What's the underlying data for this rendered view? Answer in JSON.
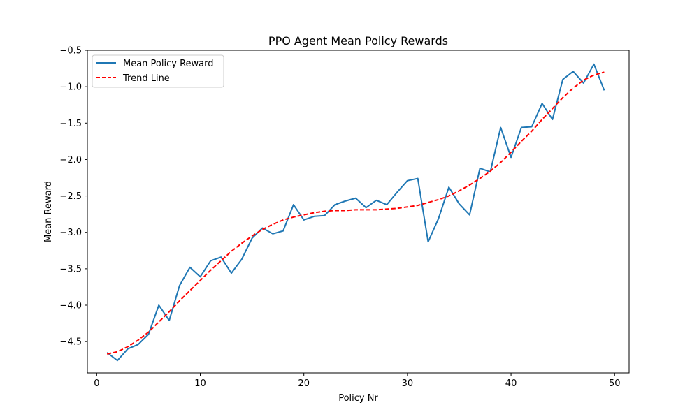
{
  "chart_data": {
    "type": "line",
    "title": "PPO Agent Mean Policy Rewards",
    "xlabel": "Policy Nr",
    "ylabel": "Mean Reward",
    "xlim": [
      -0.9,
      51.4
    ],
    "ylim": [
      -4.93,
      -0.5
    ],
    "xticks": [
      0,
      10,
      20,
      30,
      40,
      50
    ],
    "xtick_labels": [
      "0",
      "10",
      "20",
      "30",
      "40",
      "50"
    ],
    "yticks": [
      -4.5,
      -4.0,
      -3.5,
      -3.0,
      -2.5,
      -2.0,
      -1.5,
      -1.0,
      -0.5
    ],
    "ytick_labels": [
      "−4.5",
      "−4.0",
      "−3.5",
      "−3.0",
      "−2.5",
      "−2.0",
      "−1.5",
      "−1.0",
      "−0.5"
    ],
    "grid": false,
    "legend_position": "top-left",
    "x": [
      1,
      2,
      3,
      4,
      5,
      6,
      7,
      8,
      9,
      10,
      11,
      12,
      13,
      14,
      15,
      16,
      17,
      18,
      19,
      20,
      21,
      22,
      23,
      24,
      25,
      26,
      27,
      28,
      29,
      30,
      31,
      32,
      33,
      34,
      35,
      36,
      37,
      38,
      39,
      40,
      41,
      42,
      43,
      44,
      45,
      46,
      47,
      48,
      49
    ],
    "series": [
      {
        "name": "Mean Policy Reward",
        "style": "solid",
        "color": "#1f77b4",
        "values": [
          -4.65,
          -4.76,
          -4.6,
          -4.54,
          -4.4,
          -4.0,
          -4.21,
          -3.73,
          -3.48,
          -3.61,
          -3.39,
          -3.34,
          -3.56,
          -3.37,
          -3.08,
          -2.94,
          -3.02,
          -2.98,
          -2.62,
          -2.83,
          -2.78,
          -2.77,
          -2.62,
          -2.57,
          -2.53,
          -2.66,
          -2.56,
          -2.62,
          -2.45,
          -2.29,
          -2.26,
          -3.13,
          -2.81,
          -2.38,
          -2.61,
          -2.76,
          -2.12,
          -2.17,
          -1.56,
          -1.97,
          -1.56,
          -1.55,
          -1.23,
          -1.45,
          -0.9,
          -0.79,
          -0.95,
          -0.69,
          -1.05
        ]
      },
      {
        "name": "Trend Line",
        "style": "dashed",
        "color": "#ff0000",
        "values": [
          -4.67,
          -4.64,
          -4.57,
          -4.48,
          -4.37,
          -4.23,
          -4.09,
          -3.94,
          -3.8,
          -3.66,
          -3.52,
          -3.39,
          -3.26,
          -3.15,
          -3.05,
          -2.96,
          -2.89,
          -2.83,
          -2.79,
          -2.76,
          -2.73,
          -2.71,
          -2.7,
          -2.7,
          -2.69,
          -2.69,
          -2.69,
          -2.68,
          -2.67,
          -2.65,
          -2.63,
          -2.59,
          -2.55,
          -2.5,
          -2.43,
          -2.35,
          -2.26,
          -2.16,
          -2.04,
          -1.9,
          -1.75,
          -1.61,
          -1.45,
          -1.3,
          -1.15,
          -1.02,
          -0.91,
          -0.84,
          -0.8
        ]
      }
    ]
  }
}
